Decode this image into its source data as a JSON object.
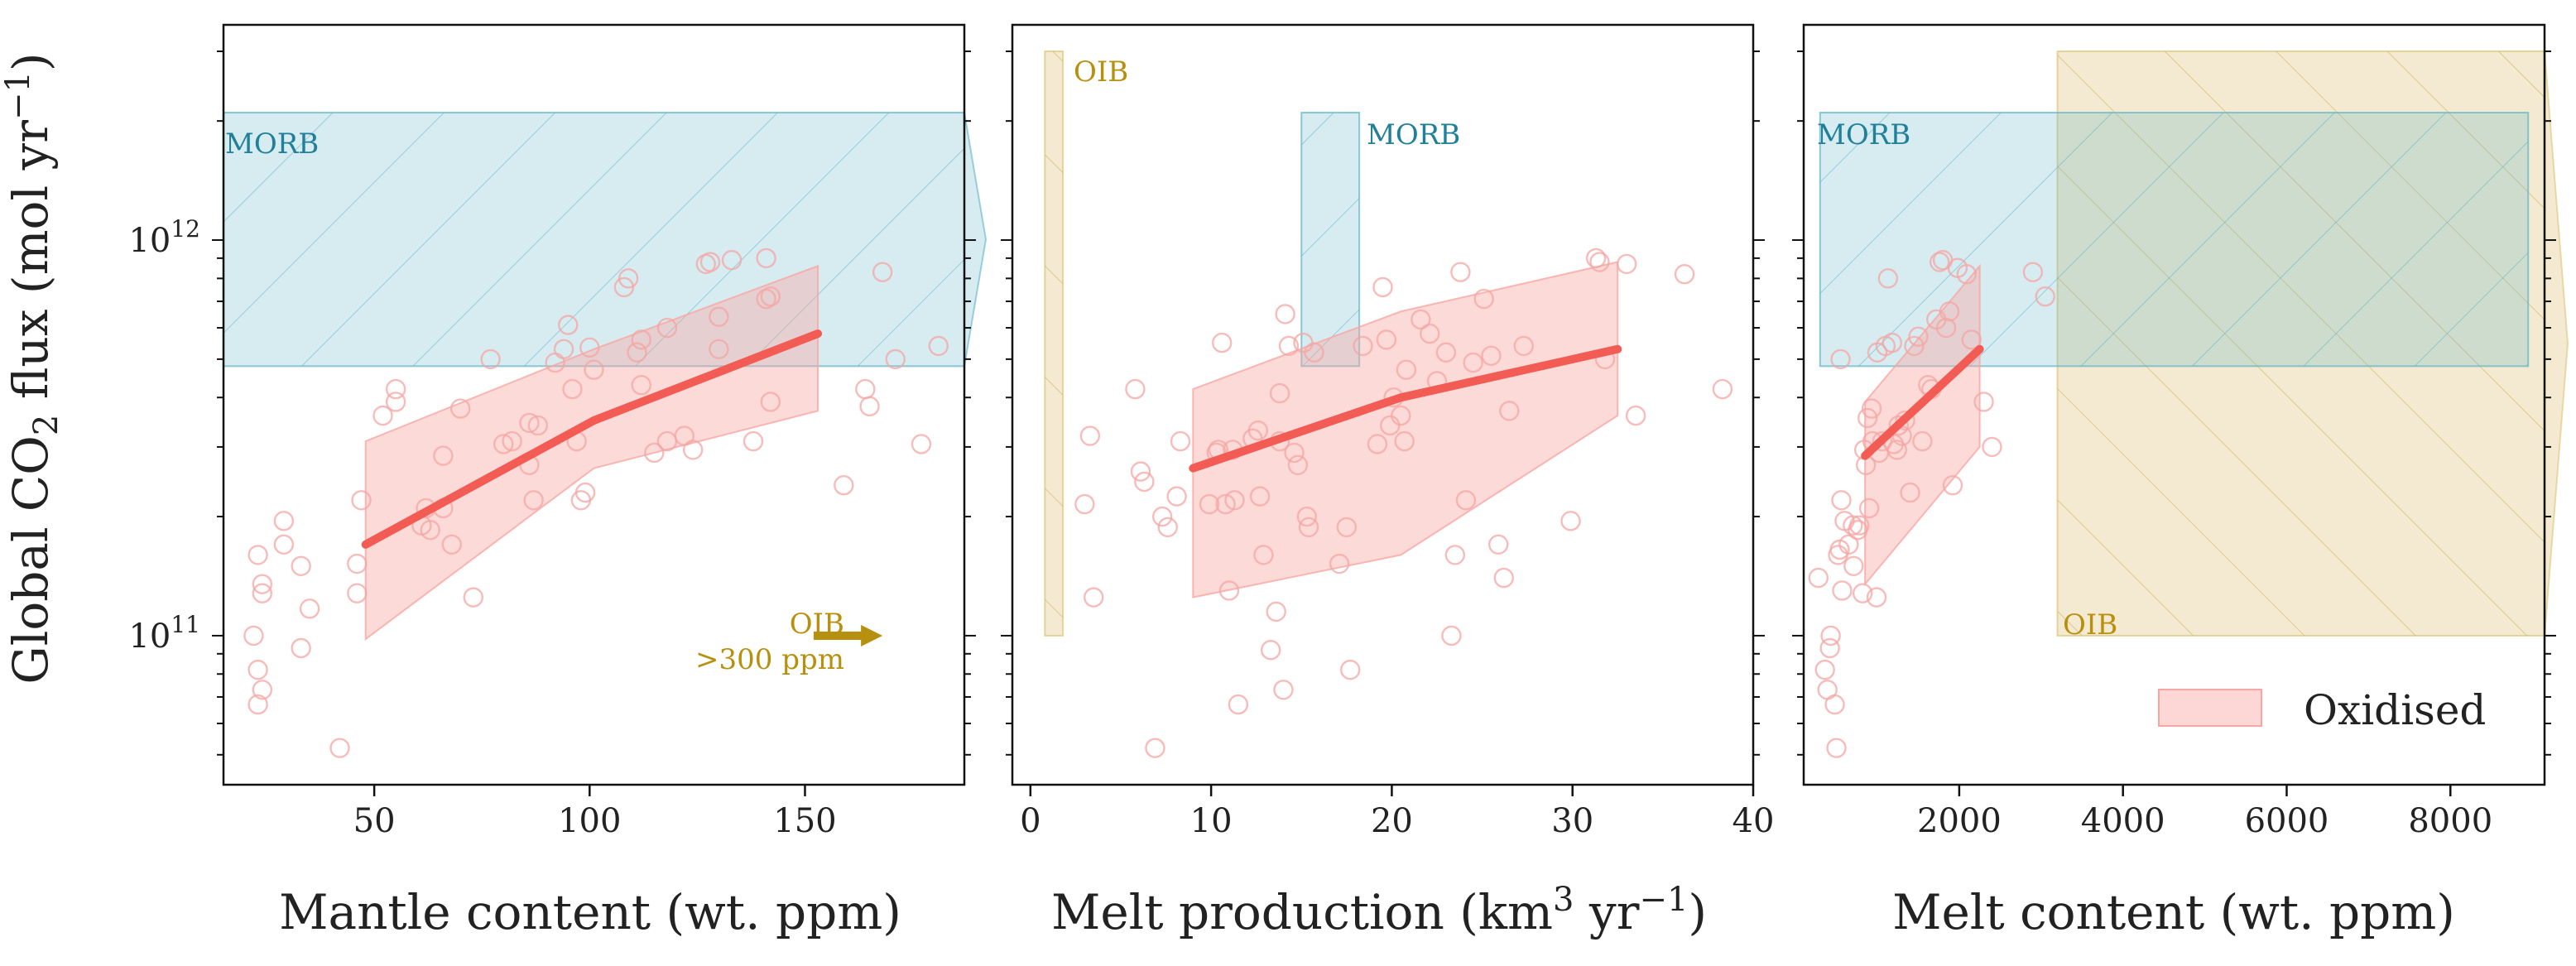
{
  "figure": {
    "ylabel_main": "Global CO",
    "ylabel_sub": "2",
    "ylabel_tail": " flux (mol yr",
    "ylabel_sup": "−1",
    "ylabel_close": ")",
    "ytick_labels": [
      {
        "base": "10",
        "exp": "11",
        "value": 100000000000.0
      },
      {
        "base": "10",
        "exp": "12",
        "value": 1000000000000.0
      }
    ],
    "ylim": [
      42000000000.0,
      3500000000000.0
    ],
    "yscale": "log"
  },
  "colors": {
    "morb": "#5fb3c7",
    "morb_text": "#207f99",
    "oib": "#dcc47a",
    "oib_text": "#b8900f",
    "oxidised_line": "#f25c54",
    "oxidised_fill": "#f9a6a3",
    "scatter": "#f4a5a3"
  },
  "legend": {
    "label": "Oxidised",
    "placement": "lower-right"
  },
  "chart_data": [
    {
      "type": "scatter",
      "xlabel": "Mantle content (wt. ppm)",
      "xlim": [
        15,
        187
      ],
      "xticks": [
        50,
        100,
        150
      ],
      "xtick_labels": [
        "50",
        "100",
        "150"
      ],
      "morb": {
        "x": [
          15,
          187
        ],
        "y": [
          480000000000.0,
          2100000000000.0
        ],
        "label": "MORB"
      },
      "oib_annotation": {
        "label1": "OIB",
        "label2": ">300 ppm",
        "arrow_x": [
          152,
          168
        ],
        "y": 100000000000.0
      },
      "line": {
        "x": [
          48,
          101,
          153
        ],
        "y": [
          170000000000.0,
          350000000000.0,
          580000000000.0
        ]
      },
      "band": {
        "x": [
          48,
          101,
          153
        ],
        "lower": [
          98000000000.0,
          265000000000.0,
          370000000000.0
        ],
        "upper": [
          310000000000.0,
          530000000000.0,
          860000000000.0
        ]
      },
      "points": [
        [
          22,
          100000000000.0
        ],
        [
          23,
          82000000000.0
        ],
        [
          24,
          73000000000.0
        ],
        [
          23,
          67000000000.0
        ],
        [
          24,
          135000000000.0
        ],
        [
          24,
          128000000000.0
        ],
        [
          23,
          160000000000.0
        ],
        [
          29,
          195000000000.0
        ],
        [
          29,
          170000000000.0
        ],
        [
          33,
          150000000000.0
        ],
        [
          33,
          93000000000.0
        ],
        [
          35,
          117000000000.0
        ],
        [
          42,
          52000000000.0
        ],
        [
          46,
          128000000000.0
        ],
        [
          46,
          152000000000.0
        ],
        [
          47,
          220000000000.0
        ],
        [
          52,
          360000000000.0
        ],
        [
          55,
          420000000000.0
        ],
        [
          55,
          390000000000.0
        ],
        [
          61,
          190000000000.0
        ],
        [
          62,
          210000000000.0
        ],
        [
          63,
          185000000000.0
        ],
        [
          66,
          210000000000.0
        ],
        [
          66,
          285000000000.0
        ],
        [
          68,
          170000000000.0
        ],
        [
          70,
          375000000000.0
        ],
        [
          73,
          125000000000.0
        ],
        [
          77,
          500000000000.0
        ],
        [
          80,
          305000000000.0
        ],
        [
          82,
          310000000000.0
        ],
        [
          86,
          345000000000.0
        ],
        [
          86,
          270000000000.0
        ],
        [
          88,
          340000000000.0
        ],
        [
          87,
          220000000000.0
        ],
        [
          92,
          490000000000.0
        ],
        [
          94,
          530000000000.0
        ],
        [
          95,
          610000000000.0
        ],
        [
          96,
          420000000000.0
        ],
        [
          97,
          310000000000.0
        ],
        [
          98,
          220000000000.0
        ],
        [
          99,
          230000000000.0
        ],
        [
          100,
          535000000000.0
        ],
        [
          101,
          470000000000.0
        ],
        [
          108,
          760000000000.0
        ],
        [
          109,
          800000000000.0
        ],
        [
          111,
          520000000000.0
        ],
        [
          112,
          560000000000.0
        ],
        [
          112,
          430000000000.0
        ],
        [
          115,
          290000000000.0
        ],
        [
          118,
          310000000000.0
        ],
        [
          118,
          600000000000.0
        ],
        [
          122,
          320000000000.0
        ],
        [
          124,
          295000000000.0
        ],
        [
          127,
          870000000000.0
        ],
        [
          128,
          880000000000.0
        ],
        [
          130,
          640000000000.0
        ],
        [
          130,
          530000000000.0
        ],
        [
          133,
          890000000000.0
        ],
        [
          138,
          310000000000.0
        ],
        [
          141,
          900000000000.0
        ],
        [
          141,
          710000000000.0
        ],
        [
          142,
          720000000000.0
        ],
        [
          142,
          390000000000.0
        ],
        [
          159,
          240000000000.0
        ],
        [
          164,
          420000000000.0
        ],
        [
          165,
          380000000000.0
        ],
        [
          168,
          830000000000.0
        ],
        [
          171,
          500000000000.0
        ],
        [
          177,
          305000000000.0
        ],
        [
          181,
          540000000000.0
        ]
      ]
    },
    {
      "type": "scatter",
      "xlabel_main": "Melt production (km",
      "xlabel_sup1": "3",
      "xlabel_mid": " yr",
      "xlabel_sup2": "−1",
      "xlabel_close": ")",
      "xlim": [
        -1,
        40
      ],
      "xticks": [
        0,
        10,
        20,
        30,
        40
      ],
      "xtick_labels": [
        "0",
        "10",
        "20",
        "30",
        "40"
      ],
      "morb": {
        "x": [
          15,
          18.2
        ],
        "y": [
          480000000000.0,
          2100000000000.0
        ],
        "label": "MORB"
      },
      "oib": {
        "x": [
          0.8,
          1.8
        ],
        "y": [
          100000000000.0,
          3000000000000.0
        ],
        "label": "OIB"
      },
      "line": {
        "x": [
          9,
          20.5,
          32.5
        ],
        "y": [
          265000000000.0,
          400000000000.0,
          530000000000.0
        ]
      },
      "band": {
        "x": [
          9,
          20.5,
          32.5
        ],
        "lower": [
          125000000000.0,
          160000000000.0,
          360000000000.0
        ],
        "upper": [
          420000000000.0,
          660000000000.0,
          880000000000.0
        ]
      },
      "points": [
        [
          3,
          215000000000.0
        ],
        [
          3.3,
          320000000000.0
        ],
        [
          3.5,
          125000000000.0
        ],
        [
          5.8,
          420000000000.0
        ],
        [
          6.1,
          260000000000.0
        ],
        [
          6.3,
          245000000000.0
        ],
        [
          6.9,
          52000000000.0
        ],
        [
          7.3,
          200000000000.0
        ],
        [
          7.6,
          188000000000.0
        ],
        [
          8.1,
          225000000000.0
        ],
        [
          8.3,
          310000000000.0
        ],
        [
          9.9,
          215000000000.0
        ],
        [
          10.3,
          290000000000.0
        ],
        [
          10.4,
          295000000000.0
        ],
        [
          10.6,
          550000000000.0
        ],
        [
          10.8,
          215000000000.0
        ],
        [
          11,
          130000000000.0
        ],
        [
          11.2,
          295000000000.0
        ],
        [
          11.3,
          220000000000.0
        ],
        [
          11.5,
          67000000000.0
        ],
        [
          12.3,
          315000000000.0
        ],
        [
          12.6,
          330000000000.0
        ],
        [
          12.7,
          225000000000.0
        ],
        [
          12.9,
          160000000000.0
        ],
        [
          13.3,
          92000000000.0
        ],
        [
          13.6,
          115000000000.0
        ],
        [
          13.8,
          310000000000.0
        ],
        [
          13.8,
          410000000000.0
        ],
        [
          14,
          73000000000.0
        ],
        [
          14.1,
          650000000000.0
        ],
        [
          14.3,
          540000000000.0
        ],
        [
          14.6,
          290000000000.0
        ],
        [
          14.8,
          270000000000.0
        ],
        [
          15.1,
          550000000000.0
        ],
        [
          15.3,
          200000000000.0
        ],
        [
          15.4,
          188000000000.0
        ],
        [
          15.7,
          520000000000.0
        ],
        [
          17.1,
          152000000000.0
        ],
        [
          17.5,
          188000000000.0
        ],
        [
          17.7,
          82000000000.0
        ],
        [
          18.4,
          540000000000.0
        ],
        [
          19.2,
          305000000000.0
        ],
        [
          19.5,
          760000000000.0
        ],
        [
          19.7,
          560000000000.0
        ],
        [
          19.9,
          340000000000.0
        ],
        [
          20.1,
          400000000000.0
        ],
        [
          20.5,
          360000000000.0
        ],
        [
          20.7,
          310000000000.0
        ],
        [
          20.8,
          470000000000.0
        ],
        [
          21.6,
          630000000000.0
        ],
        [
          22.1,
          580000000000.0
        ],
        [
          22.5,
          440000000000.0
        ],
        [
          23,
          520000000000.0
        ],
        [
          23.3,
          100000000000.0
        ],
        [
          23.5,
          160000000000.0
        ],
        [
          23.8,
          830000000000.0
        ],
        [
          24.1,
          220000000000.0
        ],
        [
          24.5,
          490000000000.0
        ],
        [
          25.1,
          710000000000.0
        ],
        [
          25.5,
          510000000000.0
        ],
        [
          25.9,
          170000000000.0
        ],
        [
          26.2,
          140000000000.0
        ],
        [
          26.5,
          370000000000.0
        ],
        [
          27.3,
          540000000000.0
        ],
        [
          29.9,
          195000000000.0
        ],
        [
          31.3,
          900000000000.0
        ],
        [
          31.5,
          880000000000.0
        ],
        [
          31.8,
          500000000000.0
        ],
        [
          33,
          870000000000.0
        ],
        [
          33.5,
          360000000000.0
        ],
        [
          36.2,
          820000000000.0
        ],
        [
          38.3,
          420000000000.0
        ]
      ]
    },
    {
      "type": "scatter",
      "xlabel": "Melt content (wt. ppm)",
      "xlim": [
        100,
        9150
      ],
      "xticks": [
        2000,
        4000,
        6000,
        8000
      ],
      "xtick_labels": [
        "2000",
        "4000",
        "6000",
        "8000"
      ],
      "morb": {
        "x": [
          300,
          8950
        ],
        "y": [
          480000000000.0,
          2100000000000.0
        ],
        "label": "MORB"
      },
      "oib": {
        "x": [
          3200,
          9150
        ],
        "y": [
          100000000000.0,
          3000000000000.0
        ],
        "label": "OIB"
      },
      "line": {
        "x": [
          850,
          2250
        ],
        "y": [
          285000000000.0,
          530000000000.0
        ]
      },
      "band": {
        "x": [
          850,
          2250
        ],
        "lower": [
          135000000000.0,
          300000000000.0
        ],
        "upper": [
          390000000000.0,
          860000000000.0
        ]
      },
      "points": [
        [
          280,
          140000000000.0
        ],
        [
          360,
          82000000000.0
        ],
        [
          390,
          73000000000.0
        ],
        [
          430,
          100000000000.0
        ],
        [
          420,
          93000000000.0
        ],
        [
          480,
          67000000000.0
        ],
        [
          500,
          52000000000.0
        ],
        [
          520,
          160000000000.0
        ],
        [
          540,
          165000000000.0
        ],
        [
          550,
          500000000000.0
        ],
        [
          560,
          220000000000.0
        ],
        [
          570,
          130000000000.0
        ],
        [
          600,
          195000000000.0
        ],
        [
          650,
          170000000000.0
        ],
        [
          700,
          190000000000.0
        ],
        [
          710,
          150000000000.0
        ],
        [
          760,
          185000000000.0
        ],
        [
          780,
          190000000000.0
        ],
        [
          820,
          128000000000.0
        ],
        [
          840,
          295000000000.0
        ],
        [
          860,
          270000000000.0
        ],
        [
          880,
          355000000000.0
        ],
        [
          900,
          210000000000.0
        ],
        [
          930,
          375000000000.0
        ],
        [
          940,
          310000000000.0
        ],
        [
          990,
          125000000000.0
        ],
        [
          1000,
          520000000000.0
        ],
        [
          1020,
          290000000000.0
        ],
        [
          1060,
          310000000000.0
        ],
        [
          1100,
          540000000000.0
        ],
        [
          1130,
          800000000000.0
        ],
        [
          1180,
          550000000000.0
        ],
        [
          1200,
          305000000000.0
        ],
        [
          1240,
          295000000000.0
        ],
        [
          1260,
          340000000000.0
        ],
        [
          1300,
          320000000000.0
        ],
        [
          1340,
          350000000000.0
        ],
        [
          1400,
          230000000000.0
        ],
        [
          1450,
          540000000000.0
        ],
        [
          1500,
          570000000000.0
        ],
        [
          1550,
          310000000000.0
        ],
        [
          1620,
          430000000000.0
        ],
        [
          1660,
          420000000000.0
        ],
        [
          1720,
          630000000000.0
        ],
        [
          1760,
          880000000000.0
        ],
        [
          1800,
          890000000000.0
        ],
        [
          1840,
          600000000000.0
        ],
        [
          1880,
          660000000000.0
        ],
        [
          1920,
          240000000000.0
        ],
        [
          1980,
          850000000000.0
        ],
        [
          2090,
          820000000000.0
        ],
        [
          2150,
          560000000000.0
        ],
        [
          2300,
          390000000000.0
        ],
        [
          2400,
          300000000000.0
        ],
        [
          2900,
          830000000000.0
        ],
        [
          3050,
          720000000000.0
        ]
      ]
    }
  ]
}
